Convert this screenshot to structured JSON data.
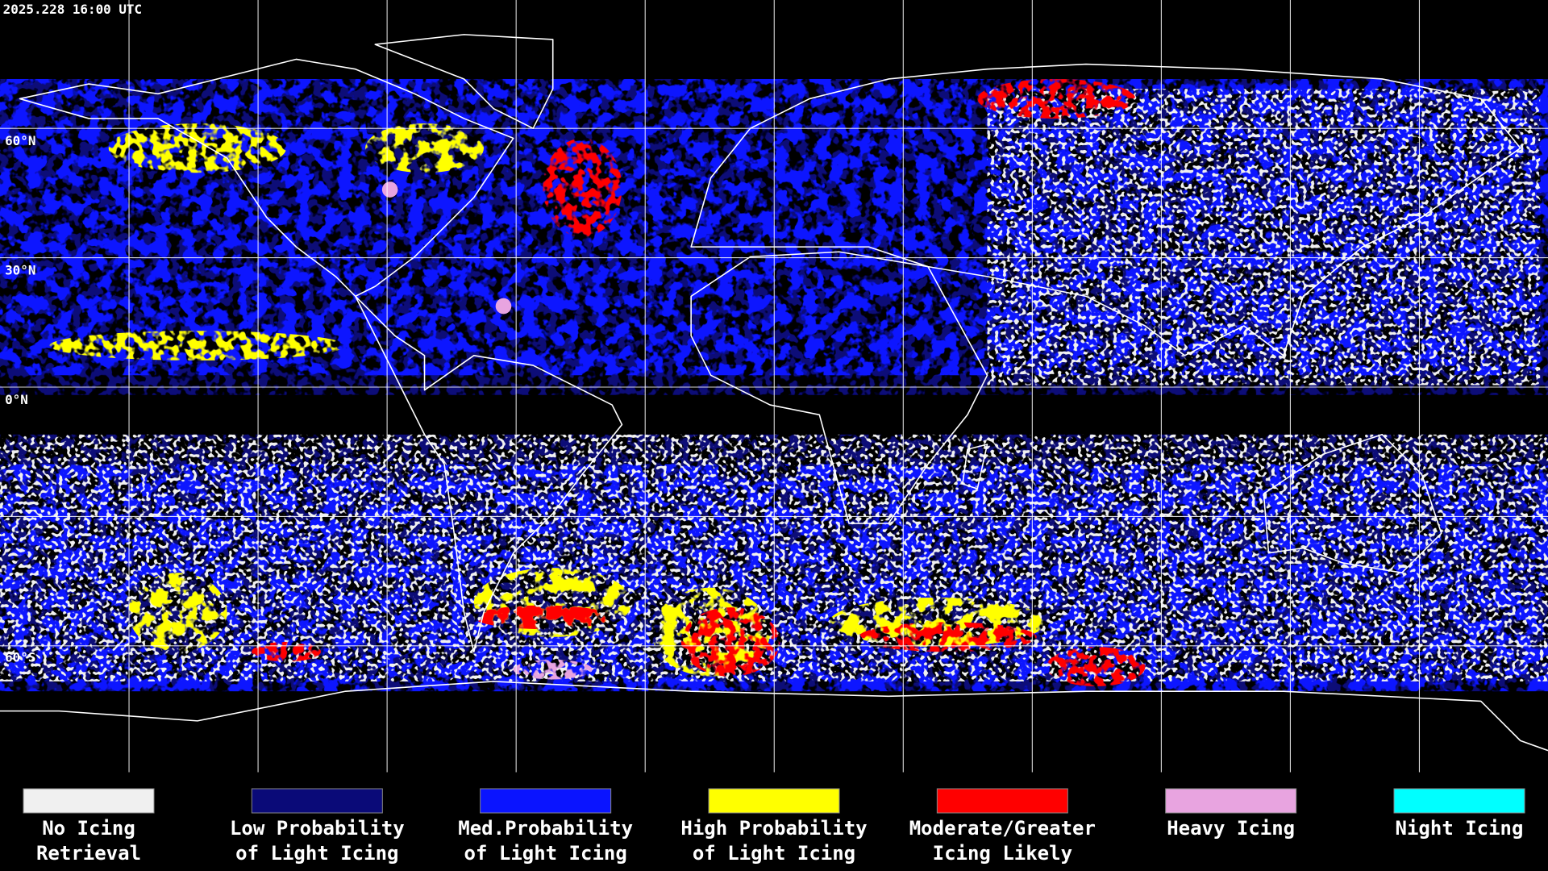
{
  "header": {
    "timestamp": "2025.228 16:00 UTC"
  },
  "latitude_labels": [
    "60°N",
    "30°N",
    "0°N",
    "60°S"
  ],
  "legend": [
    {
      "label": [
        "No Icing",
        "Retrieval"
      ],
      "color": "#f0f0f0"
    },
    {
      "label": [
        "Low Probability",
        "of Light Icing"
      ],
      "color": "#0a0a78"
    },
    {
      "label": [
        "Med.Probability",
        "of Light Icing"
      ],
      "color": "#0a14ff"
    },
    {
      "label": [
        "High Probability",
        "of Light Icing"
      ],
      "color": "#ffff00"
    },
    {
      "label": [
        "Moderate/Greater",
        "Icing Likely"
      ],
      "color": "#ff0000"
    },
    {
      "label": [
        "Heavy Icing",
        ""
      ],
      "color": "#e8a4e0"
    },
    {
      "label": [
        "Night Icing",
        ""
      ],
      "color": "#00ffff"
    }
  ]
}
